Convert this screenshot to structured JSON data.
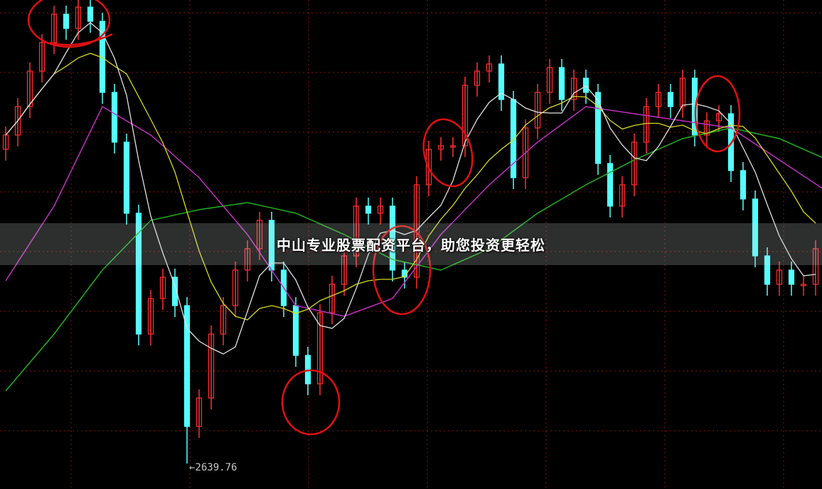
{
  "banner": {
    "text": "中山专业股票配资平台，助您投资更轻松"
  },
  "chart_data": {
    "type": "candlestick",
    "low_marker": {
      "label": "←2639.76",
      "value": 2639.76
    },
    "colors": {
      "up": "#ff3030",
      "down": "#54ffff",
      "ma5": "#e0e0e0",
      "ma10": "#d8d820",
      "ma30": "#c030c0",
      "ma60": "#20b020",
      "grid": "#8a1010",
      "annotation": "#e01010"
    },
    "grid": true,
    "closes": [
      3102,
      3142,
      3192,
      3232,
      3272,
      3252,
      3282,
      3262,
      3162,
      3092,
      2992,
      2822,
      2872,
      2902,
      2862,
      2692,
      2732,
      2822,
      2862,
      2912,
      2942,
      2982,
      2912,
      2862,
      2792,
      2752,
      2852,
      2892,
      2932,
      3002,
      2992,
      3002,
      2912,
      2902,
      3032,
      3082,
      3087,
      3087,
      3172,
      3192,
      3202,
      3152,
      3042,
      3112,
      3162,
      3197,
      3152,
      3182,
      3162,
      3062,
      3002,
      3032,
      3092,
      3142,
      3162,
      3142,
      3182,
      3102,
      3122,
      3132,
      3052,
      3012,
      2932,
      2892,
      2912,
      2892,
      2892,
      2942
    ],
    "ma30_every4": [
      2897,
      3002,
      3142,
      3102,
      3042,
      2962,
      2862,
      2847,
      2872,
      2962,
      3032,
      3092,
      3142,
      3132,
      3122,
      3112,
      3067,
      3022
    ],
    "ma60_every4": [
      2742,
      2822,
      2912,
      2982,
      2997,
      3007,
      2992,
      2962,
      2927,
      2912,
      2942,
      2992,
      3032,
      3067,
      3097,
      3112,
      3097,
      3067
    ]
  }
}
